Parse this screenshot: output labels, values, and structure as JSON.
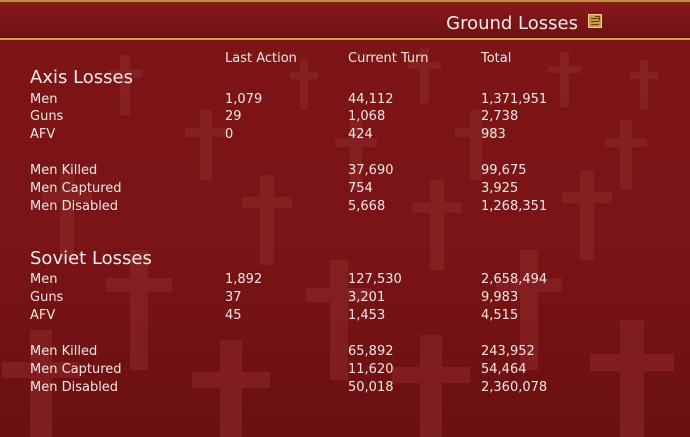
{
  "window": {
    "title": "Ground Losses",
    "icon": "notes-icon"
  },
  "columns": [
    "Last Action",
    "Current Turn",
    "Total"
  ],
  "sections": [
    {
      "title": "Axis Losses",
      "rows": [
        {
          "label": "Men",
          "last": "1,079",
          "current": "44,112",
          "total": "1,371,951"
        },
        {
          "label": "Guns",
          "last": "29",
          "current": "1,068",
          "total": "2,738"
        },
        {
          "label": "AFV",
          "last": "0",
          "current": "424",
          "total": "983"
        },
        {
          "label": "Men Killed",
          "last": "",
          "current": "37,690",
          "total": "99,675"
        },
        {
          "label": "Men Captured",
          "last": "",
          "current": "754",
          "total": "3,925"
        },
        {
          "label": "Men Disabled",
          "last": "",
          "current": "5,668",
          "total": "1,268,351"
        }
      ]
    },
    {
      "title": "Soviet Losses",
      "rows": [
        {
          "label": "Men",
          "last": "1,892",
          "current": "127,530",
          "total": "2,658,494"
        },
        {
          "label": "Guns",
          "last": "37",
          "current": "3,201",
          "total": "9,983"
        },
        {
          "label": "AFV",
          "last": "45",
          "current": "1,453",
          "total": "4,515"
        },
        {
          "label": "Men Killed",
          "last": "",
          "current": "65,892",
          "total": "243,952"
        },
        {
          "label": "Men Captured",
          "last": "",
          "current": "11,620",
          "total": "54,464"
        },
        {
          "label": "Men Disabled",
          "last": "",
          "current": "50,018",
          "total": "2,360,078"
        }
      ]
    }
  ],
  "colors": {
    "background": "#7a1416",
    "header_border": "#c9a04a",
    "text": "#f3e6e2"
  }
}
